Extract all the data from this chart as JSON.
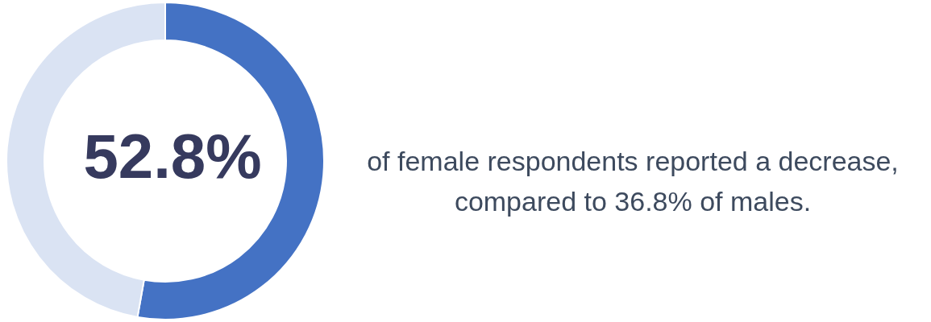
{
  "chart_data": {
    "type": "donut",
    "categories": [
      null,
      null
    ],
    "values": [
      52.8,
      47.2
    ],
    "colors": [
      "#4472c4",
      "#dae3f3"
    ],
    "value_labels": [
      "52.8%",
      null
    ],
    "annotations": [
      "of female respondents reported a decrease,\ncompared to 36.8% of males."
    ]
  }
}
